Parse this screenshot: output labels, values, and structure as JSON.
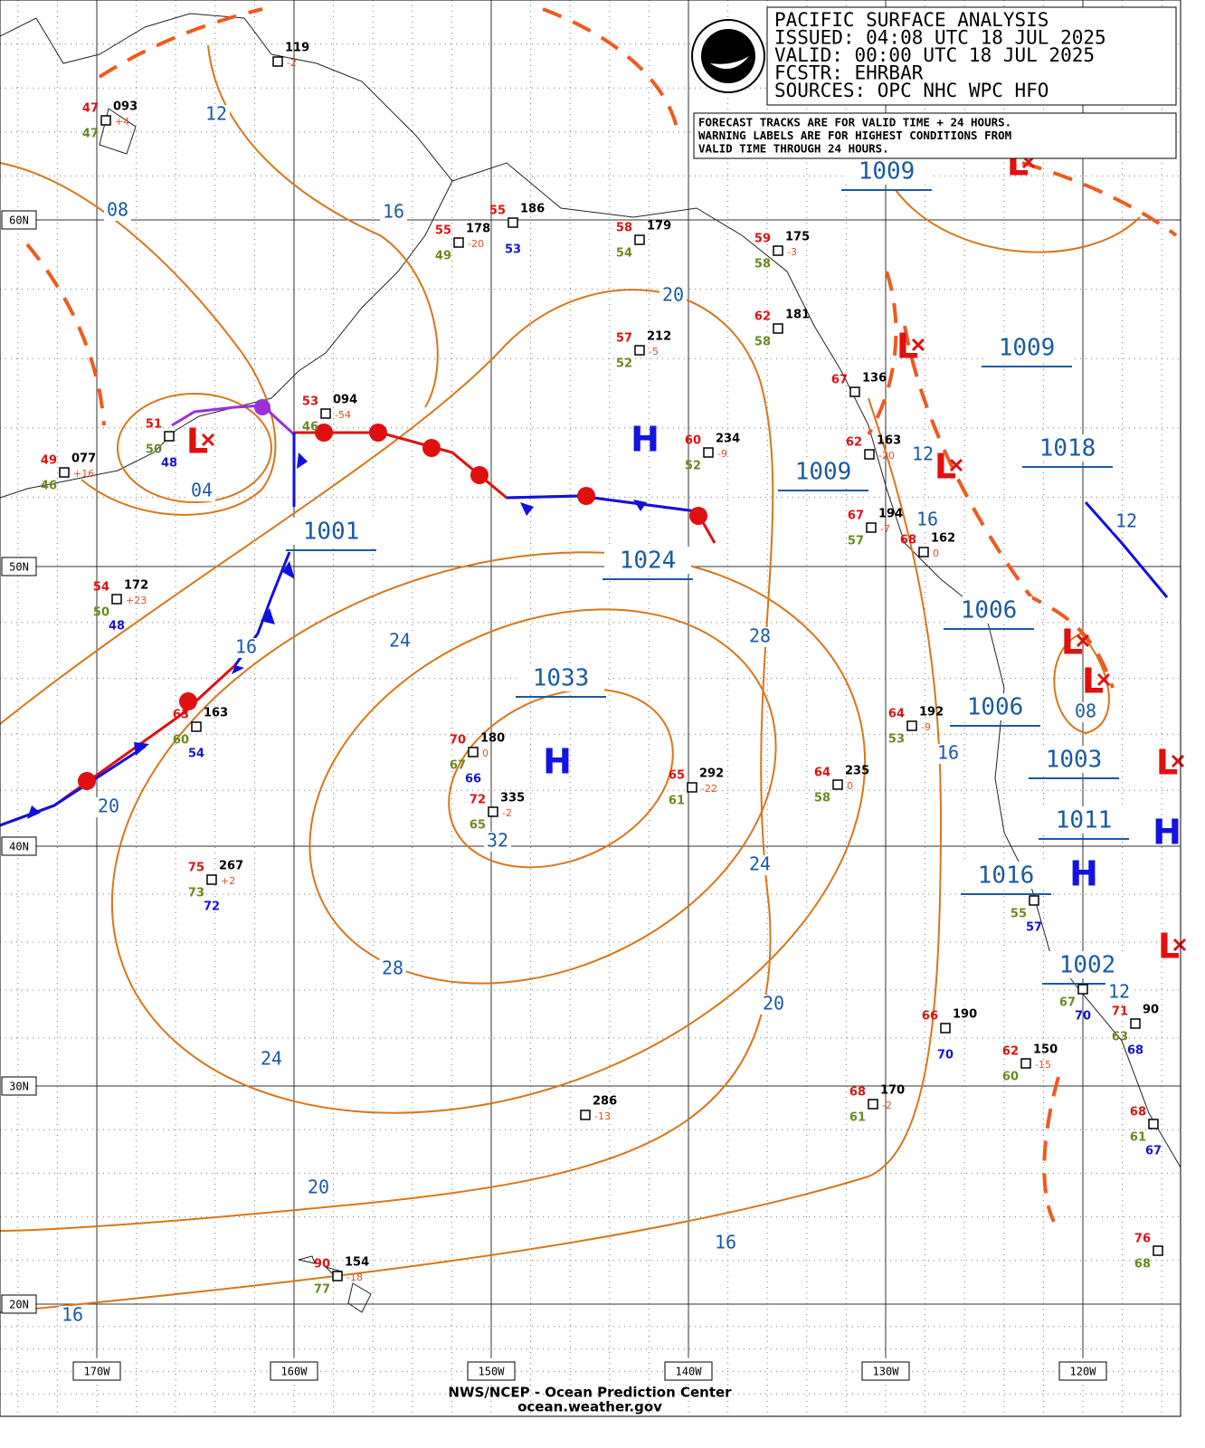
{
  "header": {
    "lines": [
      "PACIFIC SURFACE ANALYSIS",
      "ISSUED: 04:08 UTC 18 JUL 2025",
      "VALID:  00:00 UTC 18 JUL 2025",
      "FCSTR:  EHRBAR",
      "SOURCES: OPC NHC WPC HFO"
    ],
    "notice": [
      "FORECAST TRACKS ARE FOR VALID TIME + 24 HOURS.",
      "WARNING LABELS ARE FOR HIGHEST CONDITIONS FROM",
      "VALID TIME THROUGH 24 HOURS."
    ]
  },
  "longitudes": [
    "170W",
    "160W",
    "150W",
    "140W",
    "130W",
    "120W"
  ],
  "latitudes": [
    "60N",
    "50N",
    "40N",
    "30N",
    "20N"
  ],
  "pressure_labels": [
    "1009",
    "1009",
    "1009",
    "1018",
    "1001",
    "1024",
    "1033",
    "1006",
    "1006",
    "1003",
    "1011",
    "1016",
    "1002"
  ],
  "highs": [
    "H",
    "H",
    "H",
    "H"
  ],
  "lows": [
    "L",
    "L",
    "L",
    "L",
    "L",
    "L",
    "L",
    "L"
  ],
  "isobar_labels": [
    "12",
    "08",
    "16",
    "04",
    "20",
    "12",
    "16",
    "12",
    "16",
    "24",
    "28",
    "08",
    "16",
    "20",
    "32",
    "24",
    "28",
    "20",
    "12",
    "24",
    "20",
    "16",
    "16"
  ],
  "stations": [
    {
      "temp": "47",
      "pres": "093",
      "tend": "+4",
      "dew": "47"
    },
    {
      "pres": "119",
      "tend": "-2"
    },
    {
      "temp": "49",
      "pres": "077",
      "tend": "+16",
      "dew": "46"
    },
    {
      "temp": "51",
      "dew": "50",
      "extra": "48"
    },
    {
      "temp": "53",
      "pres": "094",
      "tend": "-54",
      "dew": "46"
    },
    {
      "temp": "55",
      "pres": "178",
      "tend": "-20",
      "dew": "49"
    },
    {
      "temp": "55",
      "pres": "186",
      "extra": "53"
    },
    {
      "temp": "58",
      "pres": "179",
      "dew": "54"
    },
    {
      "temp": "59",
      "pres": "175",
      "tend": "-3",
      "dew": "58"
    },
    {
      "temp": "62",
      "pres": "181",
      "dew": "58"
    },
    {
      "temp": "57",
      "pres": "212",
      "tend": "-5",
      "dew": "52"
    },
    {
      "temp": "67",
      "pres": "136"
    },
    {
      "temp": "60",
      "pres": "234",
      "tend": "-9",
      "dew": "52"
    },
    {
      "temp": "62",
      "pres": "163",
      "tend": "-20"
    },
    {
      "temp": "67",
      "pres": "194",
      "tend": "-7",
      "dew": "57"
    },
    {
      "temp": "68",
      "pres": "162",
      "tend": "0"
    },
    {
      "temp": "54",
      "pres": "172",
      "tend": "+23",
      "dew": "50",
      "extra": "48"
    },
    {
      "temp": "63",
      "pres": "163",
      "dew": "60",
      "extra": "54"
    },
    {
      "temp": "70",
      "pres": "180",
      "tend": "0",
      "dew": "67",
      "extra": "66"
    },
    {
      "temp": "72",
      "pres": "335",
      "tend": "-2",
      "dew": "65"
    },
    {
      "temp": "65",
      "pres": "292",
      "tend": "-22",
      "dew": "61"
    },
    {
      "temp": "64",
      "pres": "235",
      "tend": "0",
      "dew": "58"
    },
    {
      "temp": "64",
      "pres": "192",
      "tend": "-9",
      "dew": "53"
    },
    {
      "temp": "75",
      "pres": "267",
      "tend": "+2",
      "dew": "73",
      "extra": "72"
    },
    {
      "pres": "286",
      "tend": "-13"
    },
    {
      "temp": "68",
      "pres": "170",
      "tend": "-2",
      "dew": "61"
    },
    {
      "temp": "66",
      "pres": "190",
      "extra": "70"
    },
    {
      "temp": "62",
      "pres": "150",
      "tend": "-15",
      "dew": "60"
    },
    {
      "temp": "90",
      "pres": "154",
      "tend": "-18",
      "dew": "77"
    },
    {
      "dew": "67",
      "extra": "70"
    },
    {
      "temp": "71",
      "pres": "90",
      "dew": "63",
      "extra": "68"
    },
    {
      "temp": "68",
      "dew": "61",
      "extra": "67"
    },
    {
      "temp": "76",
      "dew": "68"
    },
    {
      "dew": "55",
      "extra": "57"
    }
  ],
  "footer": [
    "NWS/NCEP - Ocean Prediction Center",
    "ocean.weather.gov"
  ]
}
